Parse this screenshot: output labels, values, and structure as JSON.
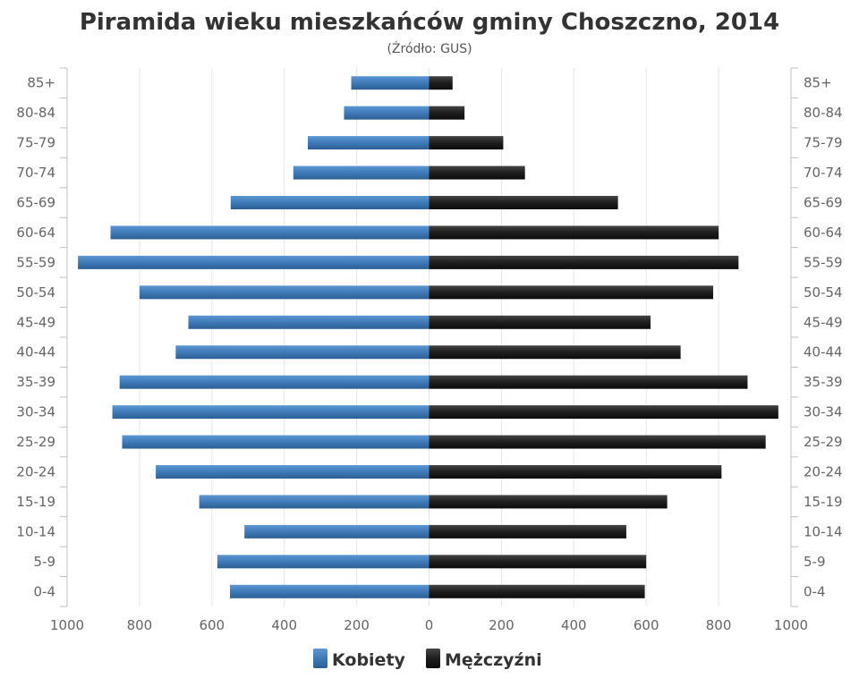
{
  "chart_data": {
    "type": "bar",
    "orientation": "horizontal",
    "title": "Piramida wieku mieszkańców gminy Choszczno, 2014",
    "subtitle": "(Źródło: GUS)",
    "categories": [
      "85+",
      "80-84",
      "75-79",
      "70-74",
      "65-69",
      "60-64",
      "55-59",
      "50-54",
      "45-49",
      "40-44",
      "35-39",
      "30-34",
      "25-29",
      "20-24",
      "15-19",
      "10-14",
      "5-9",
      "0-4"
    ],
    "series": [
      {
        "name": "Kobiety",
        "side": "left",
        "color": "#3f7ab8",
        "values": [
          215,
          235,
          335,
          375,
          548,
          880,
          970,
          800,
          665,
          700,
          855,
          875,
          848,
          755,
          635,
          510,
          585,
          550
        ]
      },
      {
        "name": "Mężczyźni",
        "side": "right",
        "color": "#1e1e1e",
        "values": [
          65,
          98,
          205,
          265,
          522,
          800,
          855,
          785,
          612,
          695,
          880,
          965,
          930,
          808,
          658,
          545,
          600,
          596
        ]
      }
    ],
    "x_ticks": [
      "1000",
      "800",
      "600",
      "400",
      "200",
      "0",
      "200",
      "400",
      "600",
      "800",
      "1000"
    ],
    "xlim": [
      -1000,
      1000
    ],
    "grid": "vertical",
    "legend": "bottom-center"
  }
}
